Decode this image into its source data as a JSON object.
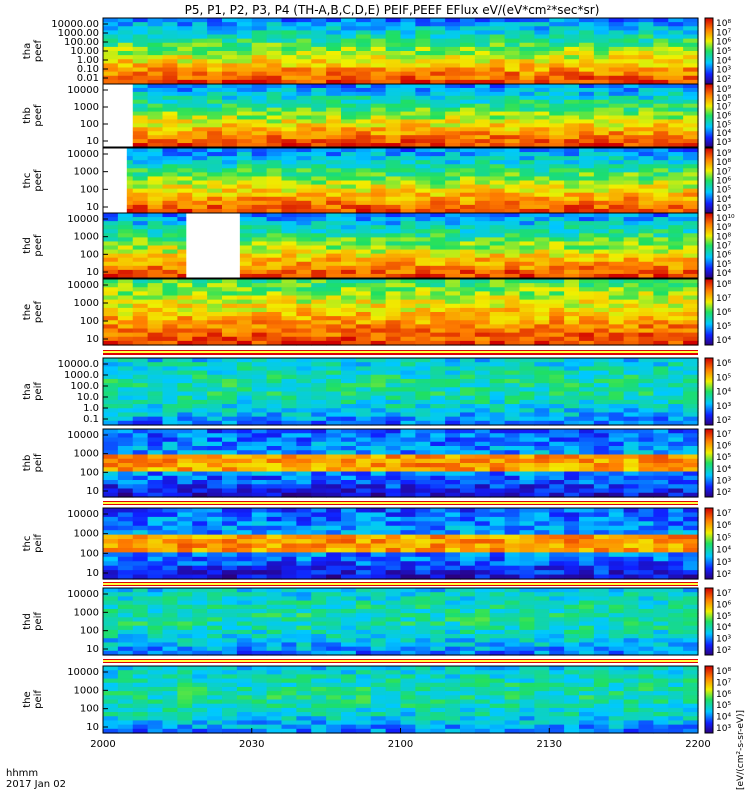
{
  "chart_data": {
    "type": "heatmap",
    "title": "P5, P1, P2, P3, P4 (TH-A,B,C,D,E) PEIF,PEEF EFlux eV/(eV*cm²*sec*sr)",
    "units_label": "[eV/(cm²-s-sr-eV)]",
    "x_axis": {
      "label_line1": "hhmm",
      "label_line2": "2017 Jan 02",
      "ticks": [
        "2000",
        "2030",
        "2100",
        "2130",
        "2200"
      ]
    },
    "panels": [
      {
        "probe": "tha",
        "species": "peef",
        "yticks": [
          "10000.00",
          "1000.00",
          "100.00",
          "10.00",
          "1.00",
          "0.10",
          "0.01"
        ],
        "cbar_ticks": [
          "10⁸",
          "10⁷",
          "10⁶",
          "10⁵",
          "10⁴",
          "10³",
          "10²"
        ],
        "gap": null
      },
      {
        "probe": "thb",
        "species": "peef",
        "yticks": [
          "10000",
          "1000",
          "100",
          "10"
        ],
        "cbar_ticks": [
          "10⁹",
          "10⁸",
          "10⁷",
          "10⁶",
          "10⁵",
          "10⁴",
          "10³"
        ],
        "gap": [
          0.0,
          0.05
        ]
      },
      {
        "probe": "thc",
        "species": "peef",
        "yticks": [
          "10000",
          "1000",
          "100",
          "10"
        ],
        "cbar_ticks": [
          "10⁹",
          "10⁸",
          "10⁷",
          "10⁶",
          "10⁵",
          "10⁴",
          "10³"
        ],
        "gap": [
          0.0,
          0.04
        ]
      },
      {
        "probe": "thd",
        "species": "peef",
        "yticks": [
          "10000",
          "1000",
          "100",
          "10"
        ],
        "cbar_ticks": [
          "10¹⁰",
          "10⁹",
          "10⁸",
          "10⁷",
          "10⁶",
          "10⁵",
          "10⁴"
        ],
        "gap": [
          0.14,
          0.23
        ]
      },
      {
        "probe": "the",
        "species": "peef",
        "yticks": [
          "10000",
          "1000",
          "100",
          "10"
        ],
        "cbar_ticks": [
          "10⁸",
          "10⁷",
          "10⁶",
          "10⁵",
          "10⁴"
        ],
        "gap": null
      },
      {
        "probe": "tha",
        "species": "peif",
        "yticks": [
          "10000.0",
          "1000.0",
          "100.0",
          "10.0",
          "1.0",
          "0.1"
        ],
        "cbar_ticks": [
          "10⁶",
          "10⁵",
          "10⁴",
          "10³",
          "10²"
        ],
        "gap": null
      },
      {
        "probe": "thb",
        "species": "peif",
        "yticks": [
          "10000",
          "1000",
          "100",
          "10"
        ],
        "cbar_ticks": [
          "10⁷",
          "10⁶",
          "10⁵",
          "10⁴",
          "10³",
          "10²"
        ],
        "gap": null
      },
      {
        "probe": "thc",
        "species": "peif",
        "yticks": [
          "10000",
          "1000",
          "100",
          "10"
        ],
        "cbar_ticks": [
          "10⁷",
          "10⁶",
          "10⁵",
          "10⁴",
          "10³",
          "10²"
        ],
        "gap": null
      },
      {
        "probe": "thd",
        "species": "peif",
        "yticks": [
          "10000",
          "1000",
          "100",
          "10"
        ],
        "cbar_ticks": [
          "10⁷",
          "10⁶",
          "10⁵",
          "10⁴",
          "10³",
          "10²"
        ],
        "gap": null
      },
      {
        "probe": "the",
        "species": "peif",
        "yticks": [
          "10000",
          "1000",
          "100",
          "10"
        ],
        "cbar_ticks": [
          "10⁸",
          "10⁷",
          "10⁶",
          "10⁵",
          "10⁴",
          "10³"
        ],
        "gap": null
      }
    ]
  }
}
